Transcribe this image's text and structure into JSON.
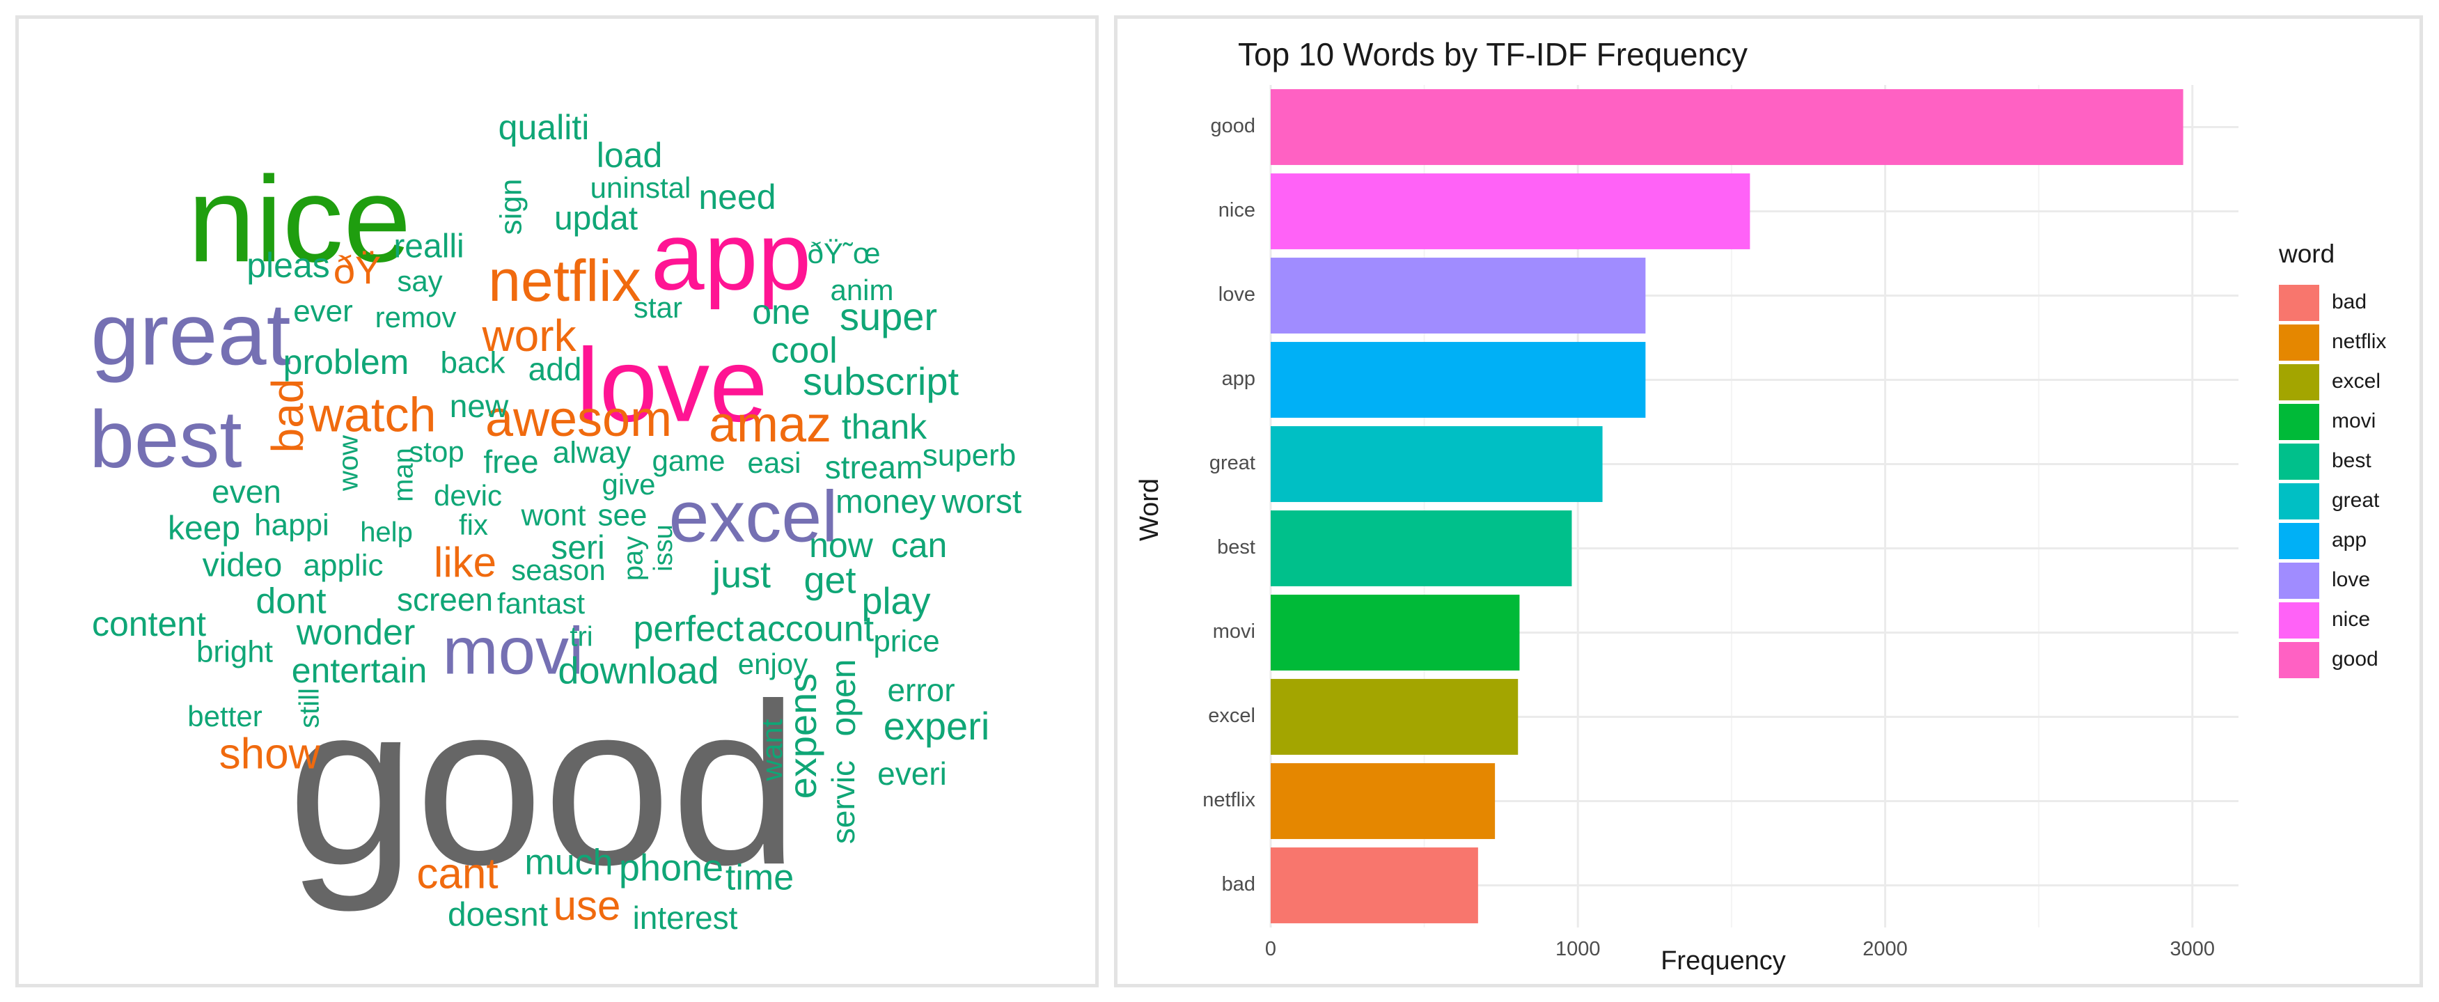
{
  "wordcloud": {
    "words": [
      {
        "text": "good",
        "color": "#666666",
        "size": 330,
        "x": 753,
        "y": 1126
      },
      {
        "text": "nice",
        "color": "#1f9e0f",
        "size": 175,
        "x": 403,
        "y": 302
      },
      {
        "text": "love",
        "color": "#ff1493",
        "size": 150,
        "x": 938,
        "y": 538
      },
      {
        "text": "app",
        "color": "#ff1493",
        "size": 138,
        "x": 1023,
        "y": 352
      },
      {
        "text": "great",
        "color": "#7570b3",
        "size": 126,
        "x": 247,
        "y": 463
      },
      {
        "text": "best",
        "color": "#7570b3",
        "size": 116,
        "x": 211,
        "y": 613
      },
      {
        "text": "excel",
        "color": "#7570b3",
        "size": 104,
        "x": 1055,
        "y": 723
      },
      {
        "text": "movi",
        "color": "#7570b3",
        "size": 96,
        "x": 710,
        "y": 915
      },
      {
        "text": "netflix",
        "color": "#f06a0e",
        "size": 84,
        "x": 784,
        "y": 383
      },
      {
        "text": "awesom",
        "color": "#f06a0e",
        "size": 72,
        "x": 804,
        "y": 580
      },
      {
        "text": "amaz",
        "color": "#f06a0e",
        "size": 72,
        "x": 1079,
        "y": 588
      },
      {
        "text": "watch",
        "color": "#f06a0e",
        "size": 70,
        "x": 508,
        "y": 574
      },
      {
        "text": "work",
        "color": "#f06a0e",
        "size": 64,
        "x": 733,
        "y": 460
      },
      {
        "text": "bad",
        "color": "#f06a0e",
        "size": 64,
        "x": 391,
        "y": 570,
        "rotate": -90
      },
      {
        "text": "show",
        "color": "#f06a0e",
        "size": 62,
        "x": 360,
        "y": 1060
      },
      {
        "text": "cant",
        "color": "#f06a0e",
        "size": 62,
        "x": 630,
        "y": 1232
      },
      {
        "text": "like",
        "color": "#f06a0e",
        "size": 60,
        "x": 641,
        "y": 785
      },
      {
        "text": "use",
        "color": "#f06a0e",
        "size": 60,
        "x": 816,
        "y": 1278
      },
      {
        "text": "ðŸ",
        "color": "#f06a0e",
        "size": 56,
        "x": 486,
        "y": 365
      },
      {
        "text": "super",
        "color": "#0fa676",
        "size": 56,
        "x": 1249,
        "y": 432
      },
      {
        "text": "subscript",
        "color": "#0fa676",
        "size": 56,
        "x": 1238,
        "y": 525
      },
      {
        "text": "cool",
        "color": "#0fa676",
        "size": 52,
        "x": 1128,
        "y": 480
      },
      {
        "text": "qualiti",
        "color": "#0fa676",
        "size": 50,
        "x": 754,
        "y": 160
      },
      {
        "text": "load",
        "color": "#0fa676",
        "size": 50,
        "x": 877,
        "y": 200
      },
      {
        "text": "need",
        "color": "#0fa676",
        "size": 50,
        "x": 1032,
        "y": 260
      },
      {
        "text": "updat",
        "color": "#0fa676",
        "size": 48,
        "x": 829,
        "y": 290
      },
      {
        "text": "pleas",
        "color": "#0fa676",
        "size": 50,
        "x": 387,
        "y": 358
      },
      {
        "text": "realli",
        "color": "#0fa676",
        "size": 48,
        "x": 589,
        "y": 330
      },
      {
        "text": "say",
        "color": "#0fa676",
        "size": 42,
        "x": 576,
        "y": 380
      },
      {
        "text": "uninstal",
        "color": "#0fa676",
        "size": 42,
        "x": 893,
        "y": 246
      },
      {
        "text": "sign",
        "color": "#0fa676",
        "size": 44,
        "x": 710,
        "y": 270,
        "rotate": -90
      },
      {
        "text": "ðŸ˜œ",
        "color": "#0fa676",
        "size": 42,
        "x": 1185,
        "y": 340
      },
      {
        "text": "anim",
        "color": "#0fa676",
        "size": 42,
        "x": 1211,
        "y": 393
      },
      {
        "text": "ever",
        "color": "#0fa676",
        "size": 44,
        "x": 437,
        "y": 423
      },
      {
        "text": "remov",
        "color": "#0fa676",
        "size": 42,
        "x": 570,
        "y": 432
      },
      {
        "text": "star",
        "color": "#0fa676",
        "size": 42,
        "x": 918,
        "y": 418
      },
      {
        "text": "one",
        "color": "#0fa676",
        "size": 50,
        "x": 1095,
        "y": 425
      },
      {
        "text": "problem",
        "color": "#0fa676",
        "size": 50,
        "x": 470,
        "y": 497
      },
      {
        "text": "back",
        "color": "#0fa676",
        "size": 44,
        "x": 652,
        "y": 497
      },
      {
        "text": "add",
        "color": "#0fa676",
        "size": 46,
        "x": 770,
        "y": 507
      },
      {
        "text": "thank",
        "color": "#0fa676",
        "size": 50,
        "x": 1243,
        "y": 590
      },
      {
        "text": "new",
        "color": "#0fa676",
        "size": 46,
        "x": 661,
        "y": 560
      },
      {
        "text": "stop",
        "color": "#0fa676",
        "size": 42,
        "x": 600,
        "y": 625
      },
      {
        "text": "free",
        "color": "#0fa676",
        "size": 46,
        "x": 707,
        "y": 640
      },
      {
        "text": "alway",
        "color": "#0fa676",
        "size": 44,
        "x": 823,
        "y": 626
      },
      {
        "text": "game",
        "color": "#0fa676",
        "size": 42,
        "x": 962,
        "y": 638
      },
      {
        "text": "easi",
        "color": "#0fa676",
        "size": 42,
        "x": 1085,
        "y": 641
      },
      {
        "text": "stream",
        "color": "#0fa676",
        "size": 46,
        "x": 1228,
        "y": 648
      },
      {
        "text": "superb",
        "color": "#0fa676",
        "size": 44,
        "x": 1365,
        "y": 630
      },
      {
        "text": "wow",
        "color": "#0fa676",
        "size": 40,
        "x": 476,
        "y": 638,
        "rotate": -90
      },
      {
        "text": "man",
        "color": "#0fa676",
        "size": 40,
        "x": 555,
        "y": 655,
        "rotate": -90
      },
      {
        "text": "even",
        "color": "#0fa676",
        "size": 46,
        "x": 327,
        "y": 683
      },
      {
        "text": "devic",
        "color": "#0fa676",
        "size": 42,
        "x": 645,
        "y": 688
      },
      {
        "text": "give",
        "color": "#0fa676",
        "size": 42,
        "x": 876,
        "y": 672
      },
      {
        "text": "money",
        "color": "#0fa676",
        "size": 48,
        "x": 1245,
        "y": 697
      },
      {
        "text": "worst",
        "color": "#0fa676",
        "size": 48,
        "x": 1383,
        "y": 697
      },
      {
        "text": "keep",
        "color": "#0fa676",
        "size": 48,
        "x": 266,
        "y": 735
      },
      {
        "text": "happi",
        "color": "#0fa676",
        "size": 44,
        "x": 392,
        "y": 730
      },
      {
        "text": "help",
        "color": "#0fa676",
        "size": 40,
        "x": 528,
        "y": 740
      },
      {
        "text": "fix",
        "color": "#0fa676",
        "size": 42,
        "x": 653,
        "y": 730
      },
      {
        "text": "wont",
        "color": "#0fa676",
        "size": 44,
        "x": 768,
        "y": 716
      },
      {
        "text": "see",
        "color": "#0fa676",
        "size": 44,
        "x": 867,
        "y": 716
      },
      {
        "text": "seri",
        "color": "#0fa676",
        "size": 48,
        "x": 803,
        "y": 763
      },
      {
        "text": "issu",
        "color": "#0fa676",
        "size": 38,
        "x": 928,
        "y": 760,
        "rotate": -90
      },
      {
        "text": "now",
        "color": "#0fa676",
        "size": 50,
        "x": 1181,
        "y": 760
      },
      {
        "text": "can",
        "color": "#0fa676",
        "size": 50,
        "x": 1293,
        "y": 760
      },
      {
        "text": "video",
        "color": "#0fa676",
        "size": 48,
        "x": 321,
        "y": 788
      },
      {
        "text": "applic",
        "color": "#0fa676",
        "size": 44,
        "x": 466,
        "y": 788
      },
      {
        "text": "season",
        "color": "#0fa676",
        "size": 42,
        "x": 775,
        "y": 795
      },
      {
        "text": "pay",
        "color": "#0fa676",
        "size": 40,
        "x": 885,
        "y": 775,
        "rotate": -90
      },
      {
        "text": "just",
        "color": "#0fa676",
        "size": 54,
        "x": 1038,
        "y": 802
      },
      {
        "text": "get",
        "color": "#0fa676",
        "size": 54,
        "x": 1165,
        "y": 810
      },
      {
        "text": "play",
        "color": "#0fa676",
        "size": 54,
        "x": 1260,
        "y": 840
      },
      {
        "text": "dont",
        "color": "#0fa676",
        "size": 52,
        "x": 391,
        "y": 840
      },
      {
        "text": "screen",
        "color": "#0fa676",
        "size": 46,
        "x": 612,
        "y": 838
      },
      {
        "text": "fantast",
        "color": "#0fa676",
        "size": 42,
        "x": 750,
        "y": 843
      },
      {
        "text": "content",
        "color": "#0fa676",
        "size": 50,
        "x": 187,
        "y": 873
      },
      {
        "text": "wonder",
        "color": "#0fa676",
        "size": 52,
        "x": 484,
        "y": 885
      },
      {
        "text": "tri",
        "color": "#0fa676",
        "size": 40,
        "x": 808,
        "y": 890
      },
      {
        "text": "perfect",
        "color": "#0fa676",
        "size": 52,
        "x": 962,
        "y": 880
      },
      {
        "text": "account",
        "color": "#0fa676",
        "size": 52,
        "x": 1137,
        "y": 880
      },
      {
        "text": "price",
        "color": "#0fa676",
        "size": 44,
        "x": 1275,
        "y": 897
      },
      {
        "text": "bright",
        "color": "#0fa676",
        "size": 44,
        "x": 310,
        "y": 912
      },
      {
        "text": "entertain",
        "color": "#0fa676",
        "size": 50,
        "x": 489,
        "y": 940
      },
      {
        "text": "download",
        "color": "#0fa676",
        "size": 54,
        "x": 890,
        "y": 940
      },
      {
        "text": "enjoy",
        "color": "#0fa676",
        "size": 42,
        "x": 1083,
        "y": 930
      },
      {
        "text": "open",
        "color": "#0fa676",
        "size": 50,
        "x": 1188,
        "y": 975,
        "rotate": -90
      },
      {
        "text": "error",
        "color": "#0fa676",
        "size": 46,
        "x": 1296,
        "y": 968
      },
      {
        "text": "still",
        "color": "#0fa676",
        "size": 40,
        "x": 420,
        "y": 990,
        "rotate": -90
      },
      {
        "text": "better",
        "color": "#0fa676",
        "size": 42,
        "x": 296,
        "y": 1005
      },
      {
        "text": "want",
        "color": "#0fa676",
        "size": 42,
        "x": 1085,
        "y": 1050,
        "rotate": -90
      },
      {
        "text": "expens",
        "color": "#0fa676",
        "size": 56,
        "x": 1130,
        "y": 1030,
        "rotate": -90
      },
      {
        "text": "experi",
        "color": "#0fa676",
        "size": 56,
        "x": 1318,
        "y": 1020
      },
      {
        "text": "servic",
        "color": "#0fa676",
        "size": 46,
        "x": 1188,
        "y": 1125,
        "rotate": -90
      },
      {
        "text": "everi",
        "color": "#0fa676",
        "size": 46,
        "x": 1283,
        "y": 1088
      },
      {
        "text": "much",
        "color": "#0fa676",
        "size": 52,
        "x": 790,
        "y": 1215
      },
      {
        "text": "phone",
        "color": "#0fa676",
        "size": 54,
        "x": 937,
        "y": 1223
      },
      {
        "text": "time",
        "color": "#0fa676",
        "size": 52,
        "x": 1064,
        "y": 1237
      },
      {
        "text": "doesnt",
        "color": "#0fa676",
        "size": 48,
        "x": 688,
        "y": 1290
      },
      {
        "text": "interest",
        "color": "#0fa676",
        "size": 46,
        "x": 957,
        "y": 1295
      }
    ]
  },
  "chart_data": {
    "type": "bar",
    "orientation": "horizontal",
    "title": "Top 10 Words by TF-IDF Frequency",
    "xlabel": "Frequency",
    "ylabel": "Word",
    "categories": [
      "good",
      "nice",
      "love",
      "app",
      "great",
      "best",
      "movi",
      "excel",
      "netflix",
      "bad"
    ],
    "values": [
      2970,
      1560,
      1220,
      1220,
      1080,
      980,
      810,
      805,
      730,
      675
    ],
    "colors": [
      "#ff61c3",
      "#ff62f7",
      "#a08cff",
      "#00b0f6",
      "#00bfc4",
      "#00c08b",
      "#00ba38",
      "#a3a500",
      "#e58700",
      "#f8766d"
    ],
    "xlim": [
      0,
      3150
    ],
    "xticks": [
      0,
      1000,
      2000,
      3000
    ],
    "grid": true,
    "legend": {
      "title": "word",
      "placement": "right",
      "entries": [
        {
          "label": "bad",
          "color": "#f8766d"
        },
        {
          "label": "netflix",
          "color": "#e58700"
        },
        {
          "label": "excel",
          "color": "#a3a500"
        },
        {
          "label": "movi",
          "color": "#00ba38"
        },
        {
          "label": "best",
          "color": "#00c08b"
        },
        {
          "label": "great",
          "color": "#00bfc4"
        },
        {
          "label": "app",
          "color": "#00b0f6"
        },
        {
          "label": "love",
          "color": "#a08cff"
        },
        {
          "label": "nice",
          "color": "#ff62f7"
        },
        {
          "label": "good",
          "color": "#ff61c3"
        }
      ]
    }
  }
}
